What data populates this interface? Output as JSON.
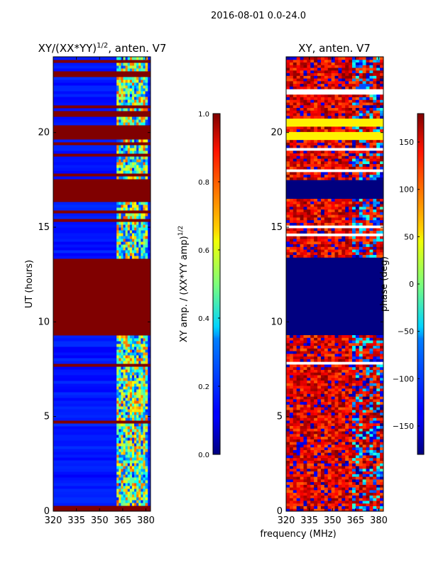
{
  "suptitle": "2016-08-01 0.0-24.0",
  "xlabel": "frequency (MHz)",
  "ylabel": "UT (hours)",
  "chart_data": [
    {
      "type": "heatmap",
      "id": "amp",
      "title_main": "XY/(XX*YY)",
      "title_sup": "1/2",
      "title_tail": ", anten. V7",
      "x_range_mhz": [
        320,
        383
      ],
      "y_range_hours": [
        0,
        24
      ],
      "x_ticks": [
        320,
        335,
        350,
        365,
        380
      ],
      "y_ticks": [
        0,
        5,
        10,
        15,
        20
      ],
      "colorbar": {
        "label_main": "XY amp. / (XX*YY amp)",
        "label_sup": "1/2",
        "range": [
          0.0,
          1.0
        ],
        "ticks": [
          "0.0",
          "0.2",
          "0.4",
          "0.6",
          "0.8",
          "1.0"
        ]
      },
      "saturated_bands_hours": [
        [
          9.3,
          13.4
        ],
        [
          16.5,
          17.5
        ],
        [
          19.6,
          20.4
        ],
        [
          20.8,
          21.2
        ]
      ],
      "structured_freq_mhz": [
        361,
        381
      ],
      "background_value": 0.12
    },
    {
      "type": "heatmap",
      "id": "phase",
      "title_main": "XY, anten. V7",
      "x_range_mhz": [
        320,
        383
      ],
      "y_range_hours": [
        0,
        24
      ],
      "x_ticks": [
        320,
        335,
        350,
        365,
        380
      ],
      "y_ticks": [
        0,
        5,
        10,
        15,
        20
      ],
      "colorbar": {
        "label_main": "phase (deg)",
        "range": [
          -180,
          180
        ],
        "ticks": [
          "150",
          "100",
          "50",
          "0",
          "−50",
          "−100",
          "−150"
        ],
        "tick_values": [
          150,
          100,
          50,
          0,
          -50,
          -100,
          -150
        ]
      },
      "constant_bands_hours": [
        [
          9.3,
          13.4,
          -180
        ],
        [
          16.5,
          17.5,
          -180
        ],
        [
          19.6,
          20.0,
          50
        ],
        [
          20.4,
          20.8,
          50
        ]
      ],
      "dominant_phase_deg": 160
    }
  ]
}
